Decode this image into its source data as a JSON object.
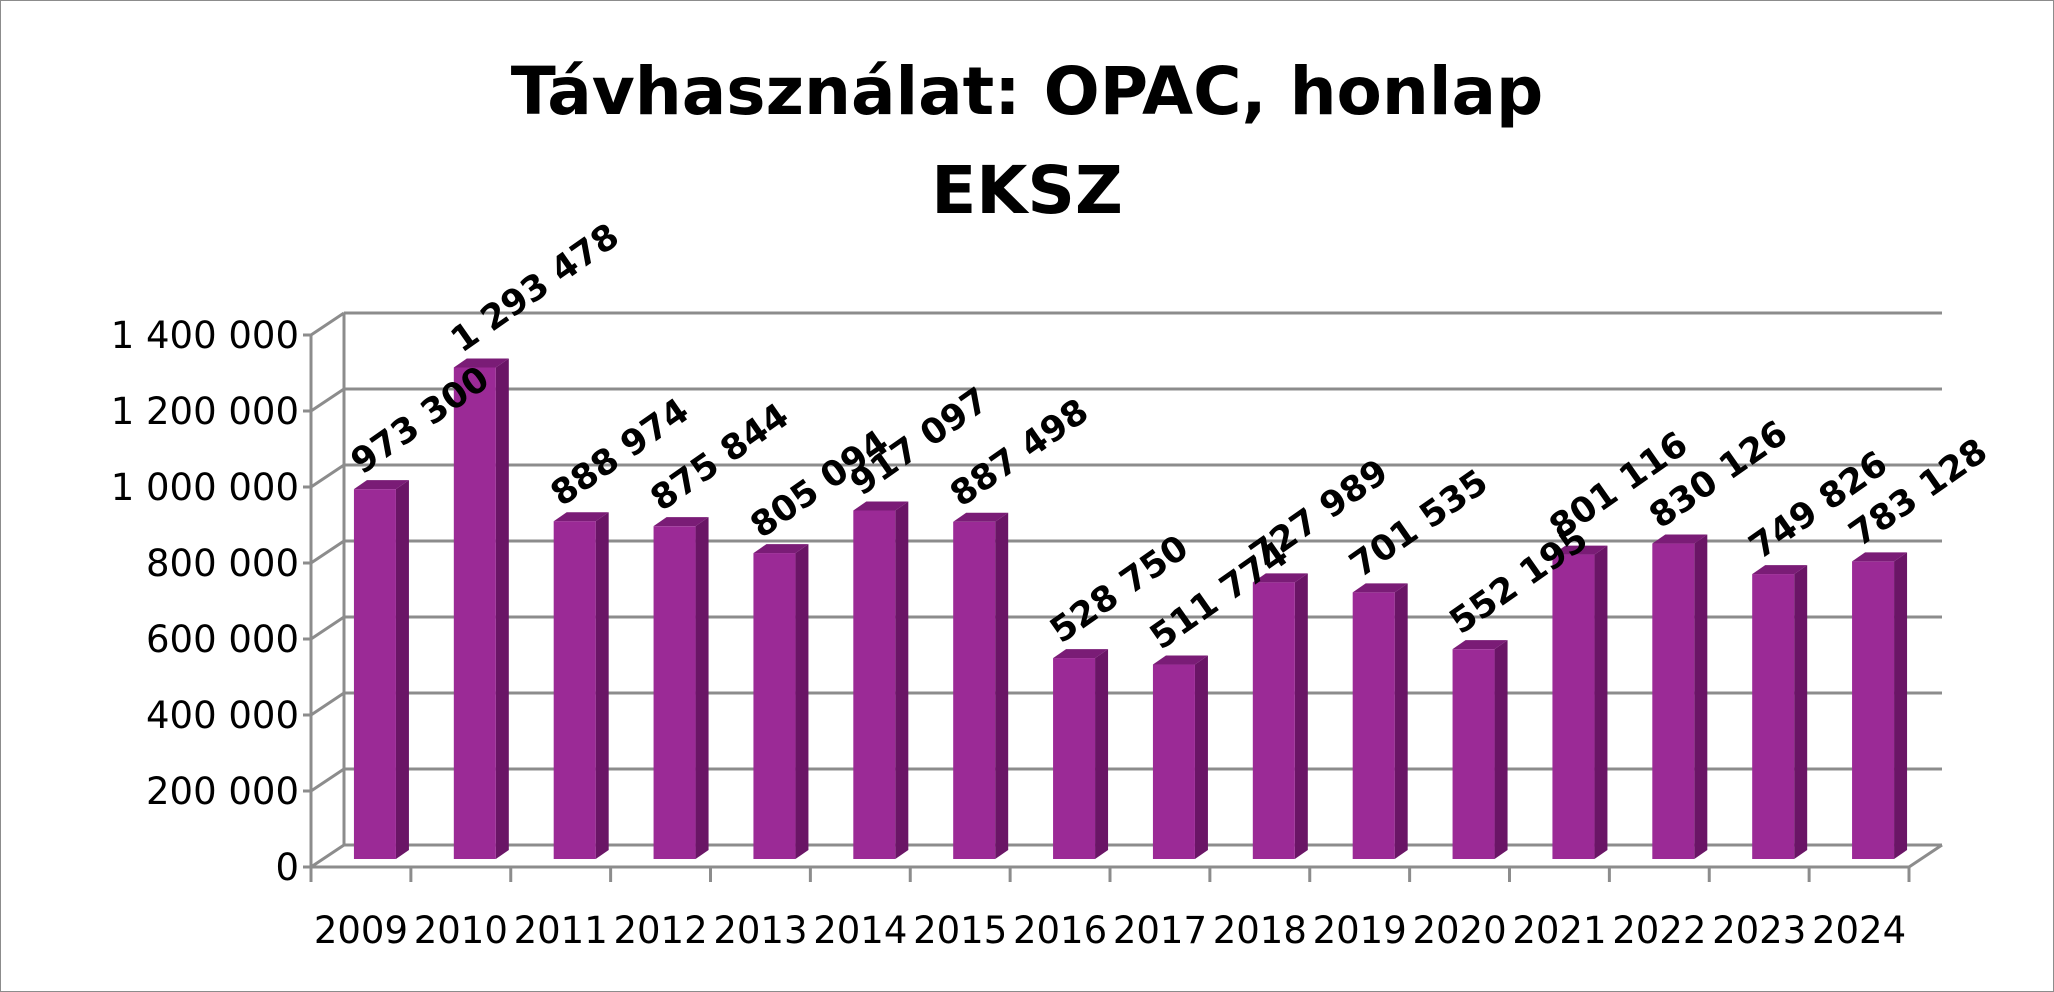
{
  "chart_data": {
    "type": "bar",
    "title": "Távhasználat: OPAC, honlap",
    "subtitle": "EKSZ",
    "categories": [
      "2009",
      "2010",
      "2011",
      "2012",
      "2013",
      "2014",
      "2015",
      "2016",
      "2017",
      "2018",
      "2019",
      "2020",
      "2021",
      "2022",
      "2023",
      "2024"
    ],
    "values": [
      973300,
      1293478,
      888974,
      875844,
      805094,
      917097,
      887498,
      528750,
      511774,
      727989,
      701535,
      552195,
      801116,
      830126,
      749826,
      783128
    ],
    "data_labels": [
      "973 300",
      "1 293 478",
      "888 974",
      "875 844",
      "805 094",
      "917 097",
      "887 498",
      "528 750",
      "511 774",
      "727 989",
      "701 535",
      "552 195",
      "801 116",
      "830 126",
      "749 826",
      "783 128"
    ],
    "yticks": [
      0,
      200000,
      400000,
      600000,
      800000,
      1000000,
      1200000,
      1400000
    ],
    "ytick_labels": [
      "0",
      "200 000",
      "400 000",
      "600 000",
      "800 000",
      "1 000 000",
      "1 200 000",
      "1 400 000"
    ],
    "ylim": [
      0,
      1400000
    ],
    "xlabel": "",
    "ylabel": "",
    "grid": true,
    "legend": "none",
    "style": "3d-column",
    "colors": {
      "bar_front": "#9b2a96",
      "bar_side": "#6a1566",
      "bar_top": "#7a1c76",
      "gridline": "#8c8c8c",
      "text": "#000000"
    }
  }
}
